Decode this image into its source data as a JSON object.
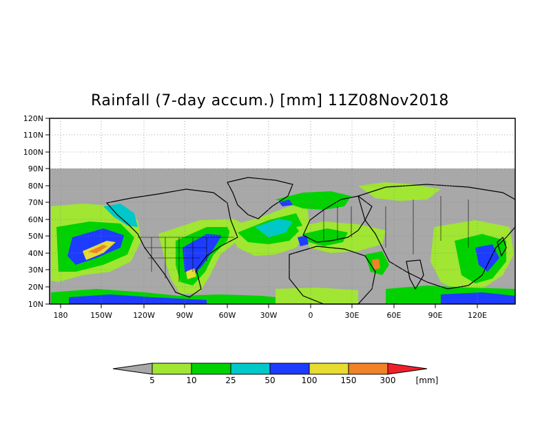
{
  "title": "Rainfall (7-day accum.) [mm] 11Z08Nov2018",
  "lat_labels": [
    "120N",
    "110N",
    "100N",
    "90N",
    "80N",
    "70N",
    "60N",
    "50N",
    "40N",
    "30N",
    "20N",
    "10N"
  ],
  "lon_labels": [
    "180",
    "150W",
    "120W",
    "90W",
    "60W",
    "30W",
    "0",
    "30E",
    "60E",
    "90E",
    "120E"
  ],
  "colorbar": {
    "unit": "[mm]",
    "thresholds": [
      "5",
      "10",
      "25",
      "50",
      "100",
      "150",
      "300"
    ],
    "colors": [
      "#a8a8a8",
      "#a0e632",
      "#00d200",
      "#00c8c8",
      "#1e3cff",
      "#e6dc32",
      "#f08228",
      "#f0202a"
    ]
  },
  "colors": {
    "no_data": "#a8a8a8",
    "light": "#a0e632",
    "moderate": "#00d200",
    "heavy": "#00c8c8",
    "very_heavy": "#1e3cff",
    "intense": "#e6dc32",
    "extreme": "#f08228"
  },
  "icons": [
    "coastline-overlay",
    "country-borders"
  ]
}
